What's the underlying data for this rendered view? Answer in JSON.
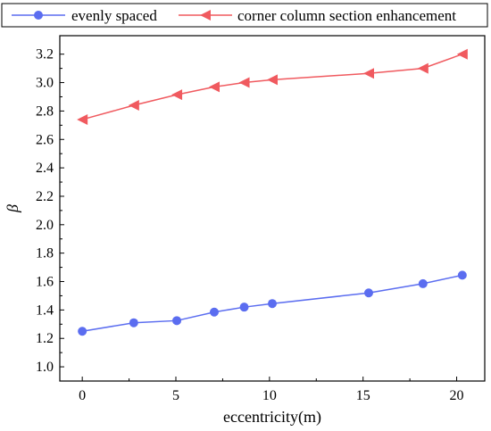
{
  "chart_data": {
    "type": "line",
    "xlabel": "eccentricity(m)",
    "ylabel": "β",
    "xlim": [
      -1.2,
      21.5
    ],
    "ylim": [
      0.9,
      3.33
    ],
    "xticks": [
      0,
      5,
      10,
      15,
      20
    ],
    "yticks": [
      1.0,
      1.2,
      1.4,
      1.6,
      1.8,
      2.0,
      2.2,
      2.4,
      2.6,
      2.8,
      3.0,
      3.2
    ],
    "ytick_labels": [
      "1.0",
      "1.2",
      "1.4",
      "1.6",
      "1.8",
      "2.0",
      "2.2",
      "2.4",
      "2.6",
      "2.8",
      "3.0",
      "3.2"
    ],
    "xtick_labels": [
      "0",
      "5",
      "10",
      "15",
      "20"
    ],
    "grid": false,
    "legend_position": "top",
    "series": [
      {
        "name": "evenly spaced",
        "color": "#5b6df0",
        "marker": "circle",
        "x": [
          0,
          2.75,
          5.05,
          7.05,
          8.65,
          10.15,
          15.3,
          18.2,
          20.3
        ],
        "y": [
          1.25,
          1.31,
          1.325,
          1.385,
          1.42,
          1.445,
          1.52,
          1.585,
          1.645
        ]
      },
      {
        "name": "corner column section enhancement",
        "color": "#f05a5f",
        "marker": "triangle-left",
        "x": [
          0,
          2.75,
          5.05,
          7.05,
          8.65,
          10.15,
          15.3,
          18.2,
          20.3
        ],
        "y": [
          2.74,
          2.84,
          2.915,
          2.97,
          3.0,
          3.02,
          3.065,
          3.1,
          3.2
        ]
      }
    ]
  }
}
